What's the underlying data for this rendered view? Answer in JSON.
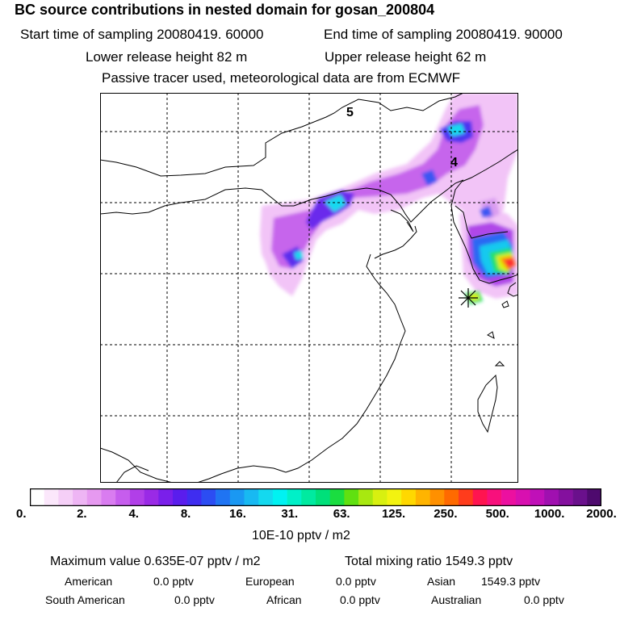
{
  "header": {
    "title": "BC  source contributions in nested domain for gosan_200804",
    "start_label": "Start time of sampling 20080419. 60000",
    "end_label": "End time of sampling 20080419. 90000",
    "lower_label": "Lower release height   82 m",
    "upper_label": "Upper release height   62 m",
    "info": "Passive tracer used, meteorological data are from ECMWF"
  },
  "map": {
    "labels": {
      "contour_5": "5",
      "contour_4": "4"
    }
  },
  "colorbar": {
    "ticks": [
      "0.",
      "2.",
      "4.",
      "8.",
      "16.",
      "31.",
      "63.",
      "125.",
      "250.",
      "500.",
      "1000.",
      "2000."
    ],
    "units": "10E-10 pptv / m2",
    "colors": [
      "#ffffff",
      "#fbe7fb",
      "#f5cff7",
      "#eeb5f4",
      "#e699f0",
      "#d97cf0",
      "#c65ded",
      "#b13fe8",
      "#9a2ae6",
      "#7a1fea",
      "#5a1ded",
      "#3f2df0",
      "#2c4df3",
      "#1f74f3",
      "#1a98f3",
      "#18b9f2",
      "#14d9ef",
      "#00f2f2",
      "#00f0c8",
      "#00eaa0",
      "#00e07a",
      "#1add40",
      "#60e010",
      "#a8e810",
      "#d8f010",
      "#f3f310",
      "#ffd800",
      "#ffb400",
      "#ff9000",
      "#ff6a00",
      "#ff3c1c",
      "#ff1450",
      "#f8107c",
      "#ec10a0",
      "#d810b0",
      "#c010b8",
      "#a010b0",
      "#84109e",
      "#6a108c",
      "#4e0a6e"
    ]
  },
  "footer": {
    "max_value": "Maximum value  0.635E-07 pptv / m2",
    "total": "Total mixing ratio     1549.3 pptv",
    "american_label": "American",
    "american_val": "0.0 pptv",
    "european_label": "European",
    "european_val": "0.0 pptv",
    "asian_label": "Asian",
    "asian_val": "1549.3 pptv",
    "south_american_label": "South American",
    "south_american_val": "0.0 pptv",
    "african_label": "African",
    "african_val": "0.0 pptv",
    "australian_label": "Australian",
    "australian_val": "0.0 pptv"
  }
}
